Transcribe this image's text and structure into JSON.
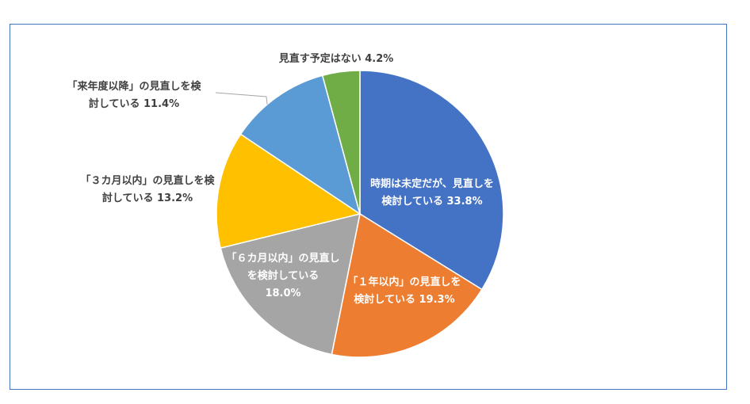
{
  "chart_data": {
    "type": "pie",
    "slices": [
      {
        "label": "時期は未定だが、見直しを検討している",
        "lines": [
          "時期は未定だが、見直しを",
          "検討している 33.8%"
        ],
        "value": 33.8,
        "color": "#4472c4",
        "label_color": "#ffffff"
      },
      {
        "label": "「１年以内」の見直しを検討している",
        "lines": [
          "「１年以内」の見直しを",
          "検討している 19.3%"
        ],
        "value": 19.3,
        "color": "#ed7d31",
        "label_color": "#ffffff"
      },
      {
        "label": "「６カ月以内」の見直しを検討している",
        "lines": [
          "「６カ月以内」の見直し",
          "を検討している",
          "18.0%"
        ],
        "value": 18.0,
        "color": "#a5a5a5",
        "label_color": "#ffffff"
      },
      {
        "label": "「３カ月以内」の見直しを検討している",
        "lines": [
          "「３カ月以内」の見直しを検",
          "討している 13.2%"
        ],
        "value": 13.2,
        "color": "#ffc000",
        "label_color": "#404040"
      },
      {
        "label": "「来年度以降」の見直しを検討している",
        "lines": [
          "「来年度以降」の見直しを検",
          "討している 11.4%"
        ],
        "value": 11.4,
        "color": "#5b9bd5",
        "label_color": "#404040"
      },
      {
        "label": "見直す予定はない",
        "lines": [
          "見直す予定はない 4.2%"
        ],
        "value": 4.2,
        "color": "#70ad47",
        "label_color": "#404040"
      }
    ]
  }
}
